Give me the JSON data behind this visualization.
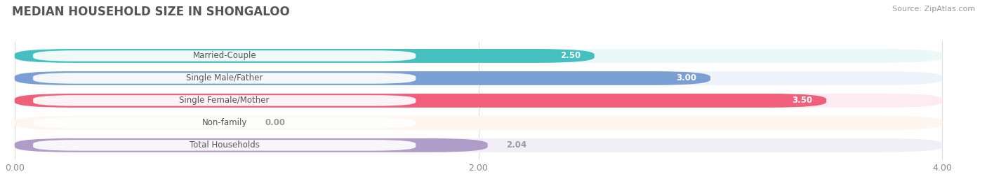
{
  "title": "MEDIAN HOUSEHOLD SIZE IN SHONGALOO",
  "source": "Source: ZipAtlas.com",
  "categories": [
    "Married-Couple",
    "Single Male/Father",
    "Single Female/Mother",
    "Non-family",
    "Total Households"
  ],
  "values": [
    2.5,
    3.0,
    3.5,
    0.0,
    2.04
  ],
  "bar_colors": [
    "#45BFBF",
    "#7B9FD4",
    "#F0607A",
    "#F5C99A",
    "#B09CC8"
  ],
  "bar_bg_colors": [
    "#EAF8F8",
    "#EEF2FA",
    "#FDEAF2",
    "#FDF5EE",
    "#F2EEF8"
  ],
  "value_colors": [
    "white",
    "white",
    "white",
    "#999999",
    "#999999"
  ],
  "xlim": [
    0,
    4.0
  ],
  "xticks": [
    0.0,
    2.0,
    4.0
  ],
  "xtick_labels": [
    "0.00",
    "2.00",
    "4.00"
  ],
  "figsize": [
    14.06,
    2.69
  ],
  "dpi": 100,
  "bg_color": "#FFFFFF",
  "label_bg": "#FFFFFF",
  "label_text_color": "#555555",
  "title_color": "#555555",
  "source_color": "#999999"
}
